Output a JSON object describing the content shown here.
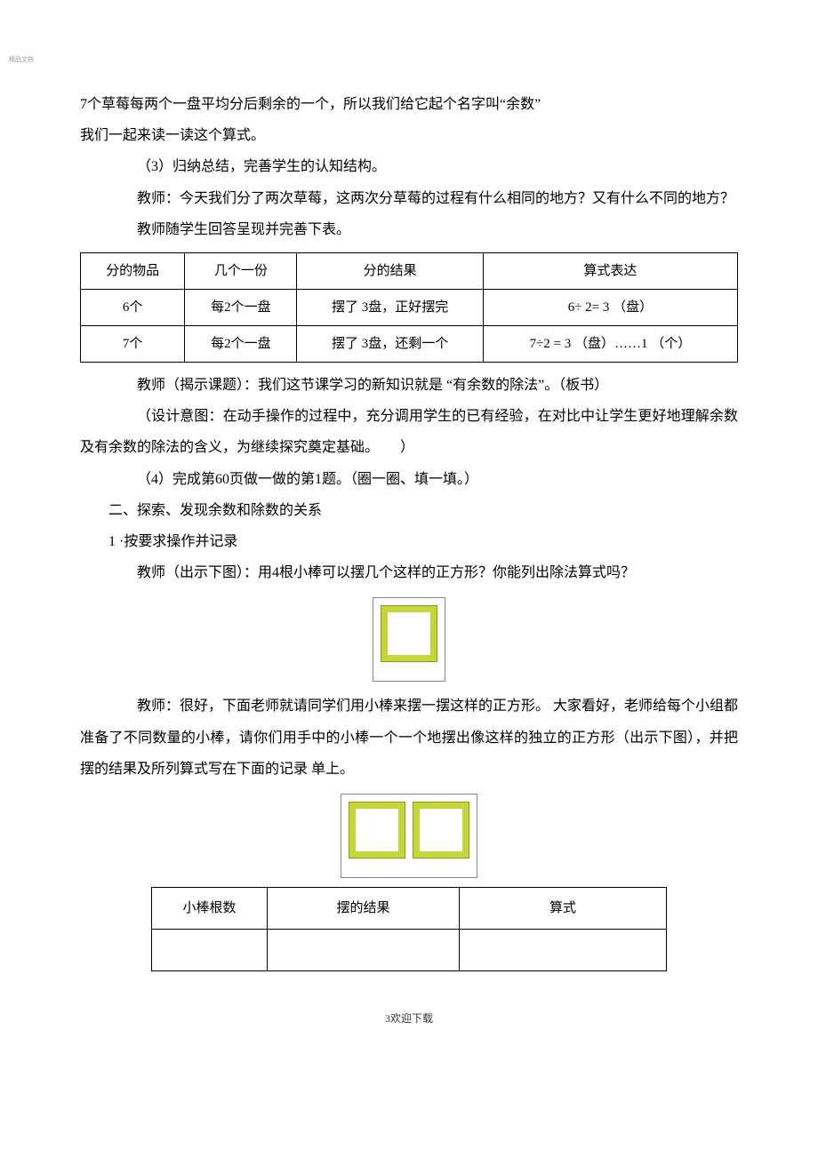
{
  "watermark": "精品文档",
  "paragraphs": {
    "p1": "7个草莓每两个一盘平均分后剩余的一个，所以我们给它起个名字叫“余数”",
    "p2": "我们一起来读一读这个算式。",
    "p3": "（3）归纳总结，完善学生的认知结构。",
    "p4": "教师：今天我们分了两次草莓，这两次分草莓的过程有什么相同的地方？又有什么不同的地方？",
    "p5": "教师随学生回答呈现并完善下表。",
    "p6": "教师（揭示课题）：我们这节课学习的新知识就是 “有余数的除法”。（板书）",
    "p7": "（设计意图：在动手操作的过程中，充分调用学生的已有经验，在对比中让学生更好地理解余数及有余数的除法的含义，为继续探究奠定基础。　　）",
    "p8": "（4）完成第60页做一做的第1题。（圈一圈、填一填。）",
    "p9": "二、探索、发现余数和除数的关系",
    "p10": "1 ·按要求操作并记录",
    "p11": "教师（出示下图）：用4根小棒可以摆几个这样的正方形？你能列出除法算式吗？",
    "p12": "教师：很好，下面老师就请同学们用小棒来摆一摆这样的正方形。 大家看好，老师给每个小组都准备了不同数量的小棒，请你们用手中的小棒一个一个地摆出像这样的独立的正方形（出示下图），并把摆的结果及所列算式写在下面的记录 单上。"
  },
  "table1": {
    "headers": [
      "分的物品",
      "几个一份",
      "分的结果",
      "算式表达"
    ],
    "rows": [
      [
        "6个",
        "每2个一盘",
        "摆了 3盘，正好摆完",
        "6÷ 2= 3 （盘）"
      ],
      [
        "7个",
        "每2个一盘",
        "摆了 3盘，还剩一个",
        "7÷2 = 3 （盘）……1 （个）"
      ]
    ]
  },
  "table2": {
    "headers": [
      "小棒根数",
      "摆的结果",
      "算式"
    ],
    "blank_rows": 1
  },
  "footer": "3欢迎下载"
}
